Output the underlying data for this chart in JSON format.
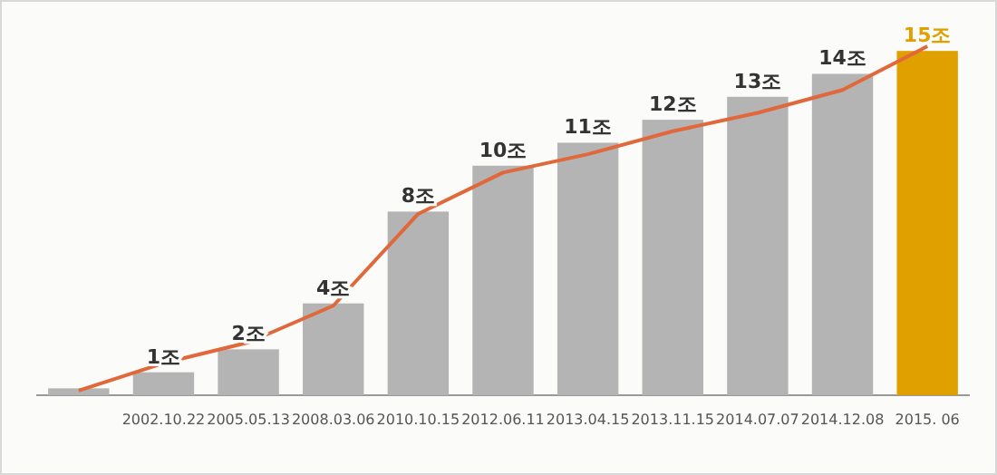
{
  "chart_data": {
    "type": "bar",
    "categories": [
      null,
      "2002.10.22",
      "2005.05.13",
      "2008.03.06",
      "2010.10.15",
      "2012.06.11",
      "2013.04.15",
      "2013.11.15",
      "2014.07.07",
      "2014.12.08",
      "2015. 06"
    ],
    "series": [
      {
        "colors": [
          "#b4b4b4",
          "#b4b4b4",
          "#b4b4b4",
          "#b4b4b4",
          "#b4b4b4",
          "#b4b4b4",
          "#b4b4b4",
          "#b4b4b4",
          "#b4b4b4",
          "#b4b4b4",
          "#e0a000"
        ],
        "values": [
          0.3,
          1,
          2,
          4,
          8,
          10,
          11,
          12,
          13,
          14,
          15
        ],
        "value_labels": [
          null,
          "1조",
          "2조",
          "4조",
          "8조",
          "10조",
          "11조",
          "12조",
          "13조",
          "14조",
          "15조"
        ]
      },
      {
        "type": "line",
        "color": "#e0683a",
        "values": [
          0.2,
          1.4,
          2.3,
          3.9,
          7.9,
          9.7,
          10.5,
          11.5,
          12.3,
          13.3,
          15.2
        ]
      }
    ],
    "tick_labels": "x"
  }
}
